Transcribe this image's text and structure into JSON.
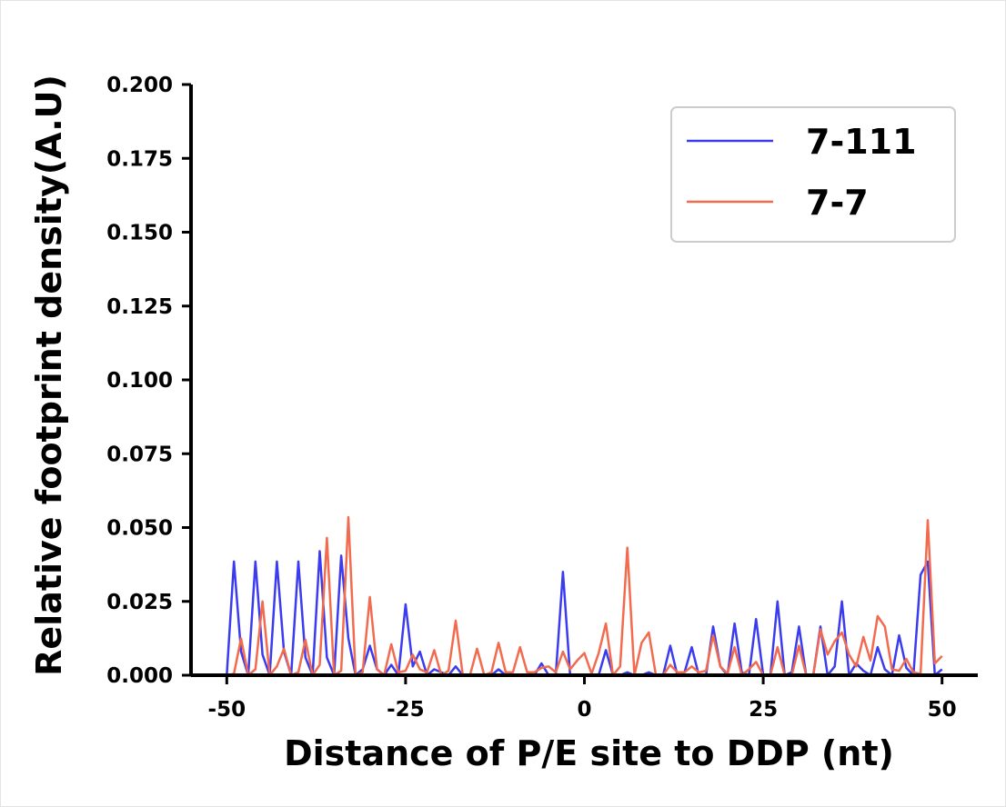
{
  "chart_data": {
    "type": "line",
    "title": "",
    "xlabel": "Distance of P/E site to DDP (nt)",
    "ylabel": "Relative footprint density(A.U)",
    "xlim": [
      -55,
      55
    ],
    "ylim": [
      0,
      0.2
    ],
    "x_ticks": [
      -50,
      -25,
      0,
      25,
      50
    ],
    "x_tick_labels": [
      "-50",
      "-25",
      "0",
      "25",
      "50"
    ],
    "y_ticks": [
      0,
      0.025,
      0.05,
      0.075,
      0.1,
      0.125,
      0.15,
      0.175,
      0.2
    ],
    "y_tick_labels": [
      "0.000",
      "0.025",
      "0.050",
      "0.075",
      "0.100",
      "0.125",
      "0.150",
      "0.175",
      "0.200"
    ],
    "grid": false,
    "legend_position": "upper right",
    "x": [
      -50,
      -49,
      -48,
      -47,
      -46,
      -45,
      -44,
      -43,
      -42,
      -41,
      -40,
      -39,
      -38,
      -37,
      -36,
      -35,
      -34,
      -33,
      -32,
      -31,
      -30,
      -29,
      -28,
      -27,
      -26,
      -25,
      -24,
      -23,
      -22,
      -21,
      -20,
      -19,
      -18,
      -17,
      -16,
      -15,
      -14,
      -13,
      -12,
      -11,
      -10,
      -9,
      -8,
      -7,
      -6,
      -5,
      -4,
      -3,
      -2,
      -1,
      0,
      1,
      2,
      3,
      4,
      5,
      6,
      7,
      8,
      9,
      10,
      11,
      12,
      13,
      14,
      15,
      16,
      17,
      18,
      19,
      20,
      21,
      22,
      23,
      24,
      25,
      26,
      27,
      28,
      29,
      30,
      31,
      32,
      33,
      34,
      35,
      36,
      37,
      38,
      39,
      40,
      41,
      42,
      43,
      44,
      45,
      46,
      47,
      48,
      49,
      50
    ],
    "series": [
      {
        "name": "7-111",
        "color": "#3b3bef",
        "values": [
          0,
          0.0385,
          0.008,
          0,
          0.0385,
          0.007,
          0,
          0.0385,
          0.008,
          0,
          0.0385,
          0.006,
          0,
          0.042,
          0.006,
          0,
          0.0405,
          0.0125,
          0,
          0.002,
          0.01,
          0.002,
          0,
          0.0035,
          0,
          0.024,
          0.003,
          0.008,
          0,
          0.002,
          0.001,
          0,
          0.003,
          0,
          0,
          0,
          0,
          0,
          0.002,
          0,
          0,
          0,
          0,
          0,
          0.004,
          0,
          0,
          0.035,
          0,
          0,
          0,
          0,
          0,
          0.0085,
          0,
          0,
          0.001,
          0,
          0,
          0.001,
          0,
          0,
          0.01,
          0,
          0.001,
          0.0095,
          0,
          0,
          0.0165,
          0.003,
          0,
          0.0175,
          0.001,
          0,
          0.019,
          0,
          0,
          0.025,
          0,
          0.001,
          0.0165,
          0,
          0,
          0.0165,
          0,
          0.003,
          0.025,
          0,
          0.004,
          0.0015,
          0,
          0.0095,
          0.002,
          0,
          0.0135,
          0.0025,
          0,
          0.034,
          0.0385,
          0,
          0.002
        ]
      },
      {
        "name": "7-7",
        "color": "#f26b4f",
        "values": [
          0,
          0.0005,
          0.0125,
          0,
          0.002,
          0.025,
          0,
          0.003,
          0.009,
          0,
          0.001,
          0.012,
          0,
          0.0035,
          0.0465,
          0,
          0.0015,
          0.0535,
          0,
          0.001,
          0.0265,
          0.002,
          0,
          0.0105,
          0.001,
          0.0015,
          0.007,
          0.002,
          0.001,
          0.0085,
          0,
          0.0015,
          0.0185,
          0,
          0,
          0.009,
          0,
          0.001,
          0.011,
          0.001,
          0.001,
          0.0095,
          0.001,
          0.001,
          0.0025,
          0.003,
          0.001,
          0.008,
          0.002,
          0.005,
          0.0075,
          0.0005,
          0.0075,
          0.0175,
          0,
          0.003,
          0.0432,
          0,
          0.011,
          0.0145,
          0,
          0,
          0.0035,
          0.001,
          0.001,
          0.003,
          0.001,
          0.0015,
          0.0135,
          0.003,
          0.0005,
          0.0095,
          0,
          0.002,
          0.0045,
          0,
          0,
          0.0095,
          0,
          0,
          0.01,
          0,
          0,
          0.0155,
          0.007,
          0.0115,
          0.0145,
          0.007,
          0.003,
          0.013,
          0.005,
          0.02,
          0.0165,
          0.002,
          0.0015,
          0.0055,
          0.001,
          0.0005,
          0.0525,
          0.004,
          0.0065
        ]
      }
    ]
  }
}
